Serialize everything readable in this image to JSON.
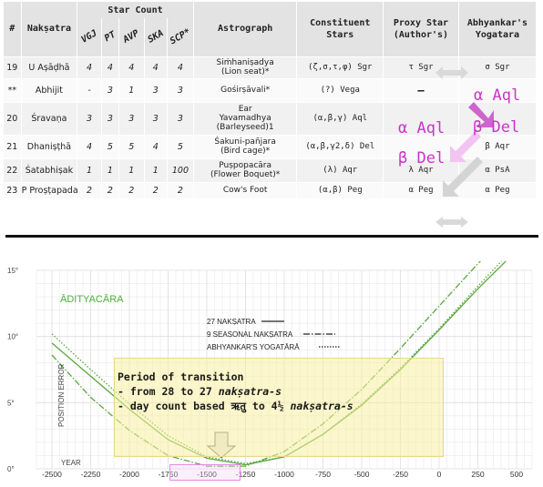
{
  "table": {
    "headers": {
      "num": "#",
      "naksatra": "Nakṣatra",
      "star_count": "Star Count",
      "sub": [
        "VGJ",
        "PT",
        "AVP",
        "SKA",
        "SCP*"
      ],
      "astrograph": "Astrograph",
      "constituent": "Constituent Stars",
      "proxy": "Proxy Star (Author's)",
      "abhyankar": "Abhyankar's Yogatara"
    },
    "rows": [
      {
        "num": "19",
        "name": "U Aṣāḍhā",
        "counts": [
          "4",
          "4",
          "4",
          "4",
          "4"
        ],
        "astro": [
          "Siṁhaniṣadya",
          "(Lion seat)*"
        ],
        "stars": "(ζ,σ,τ,φ) Sgr",
        "proxy": "τ Sgr",
        "yoga": "σ Sgr"
      },
      {
        "num": "**",
        "name": "Abhijit",
        "counts": [
          "-",
          "3",
          "1",
          "3",
          "3"
        ],
        "astro": [
          "Gośirṣāvali*"
        ],
        "stars": "(?) Vega",
        "proxy": "–",
        "yoga": ""
      },
      {
        "num": "20",
        "name": "Śravaṇa",
        "counts": [
          "3",
          "3",
          "3",
          "3",
          "3"
        ],
        "astro": [
          "Ear",
          "Yavamadhya",
          "(Barleyseed)1"
        ],
        "stars": "(α,β,γ) Aql",
        "proxy": "",
        "yoga": ""
      },
      {
        "num": "21",
        "name": "Dhaniṣṭhā",
        "counts": [
          "4",
          "5",
          "5",
          "4",
          "5"
        ],
        "astro": [
          "Śakuni-pañjara",
          "(Bird cage)*"
        ],
        "stars": "(α,β,γ2,δ) Del",
        "proxy": "",
        "yoga": "β Aqr"
      },
      {
        "num": "22",
        "name": "Śatabhiṣak",
        "counts": [
          "1",
          "1",
          "1",
          "1",
          "100"
        ],
        "astro": [
          "Puṣpopacāra",
          "(Flower Boquet)*"
        ],
        "stars": "(λ) Aqr",
        "proxy": "λ Aqr",
        "yoga": "α PsA"
      },
      {
        "num": "23",
        "name": "P Proṣṭapada",
        "counts": [
          "2",
          "2",
          "2",
          "2",
          "2"
        ],
        "astro": [
          "Cow's Foot"
        ],
        "stars": "(α,β) Peg",
        "proxy": "α Peg",
        "yoga": "α Peg"
      }
    ],
    "overlay": {
      "aql_right": "α Aql",
      "aql_left": "α Aql",
      "del_right": "β Del",
      "del_left": "β Del"
    }
  },
  "chart_data": {
    "type": "line",
    "ylabel": "POSITION ERROR",
    "xlabel": "YEAR",
    "xlim": [
      -2600,
      600
    ],
    "ylim": [
      0,
      15
    ],
    "x_ticks": [
      "-2500",
      "-2250",
      "-2000",
      "-1750",
      "-1500",
      "-1250",
      "-1000",
      "-750",
      "-500",
      "-250",
      "0",
      "250",
      "500"
    ],
    "y_ticks": [
      "0°",
      "5°",
      "10°",
      "15°"
    ],
    "annotation": "ĀDITYACĀRA",
    "legend": [
      "27 NAKṢATRA",
      "9 SEASONAL NAKṢATRA",
      "ABHYANKAR'S YOGATĀRĀ"
    ],
    "series": [
      {
        "name": "27 NAKṢATRA",
        "x": [
          -2500,
          -2250,
          -2000,
          -1750,
          -1500,
          -1250,
          -1000,
          -750,
          -500,
          -250,
          0,
          250,
          500
        ],
        "y": [
          9.5,
          7.0,
          4.5,
          2.2,
          0.8,
          0.3,
          0.9,
          2.6,
          4.8,
          7.5,
          10.5,
          13.6,
          16.5
        ]
      },
      {
        "name": "9 SEASONAL NAKṢATRA",
        "x": [
          -2500,
          -2250,
          -2000,
          -1750,
          -1500,
          -1250,
          -1000,
          -750,
          -500,
          -250,
          0,
          250,
          500
        ],
        "y": [
          8.6,
          5.4,
          2.9,
          1.0,
          0.2,
          0.2,
          1.3,
          3.4,
          6.0,
          9.1,
          12.3,
          15.5,
          18.5
        ]
      },
      {
        "name": "ABHYANKAR'S YOGATĀRĀ",
        "x": [
          -2500,
          -2250,
          -2000,
          -1750,
          -1500,
          -1250,
          -1000,
          -750,
          -500,
          -250,
          0,
          250,
          500
        ],
        "y": [
          10.2,
          7.5,
          4.9,
          2.5,
          0.9,
          0.4,
          0.9,
          2.6,
          4.9,
          7.6,
          10.6,
          13.8,
          16.9
        ]
      }
    ],
    "transition": {
      "title": "Period of transition",
      "line1_pre": "- from 28 to 27 ",
      "line1_it": "nakṣatra-s",
      "line2_pre": "- day count based ऋतु to  4½ ",
      "line2_it": "nakṣatra-s",
      "period": [
        -1800,
        -1250
      ]
    },
    "colors": {
      "line": "#5aa83c",
      "grid": "#dddddd",
      "highlight": "#e68ae6",
      "box": "#f6ecaa"
    }
  }
}
